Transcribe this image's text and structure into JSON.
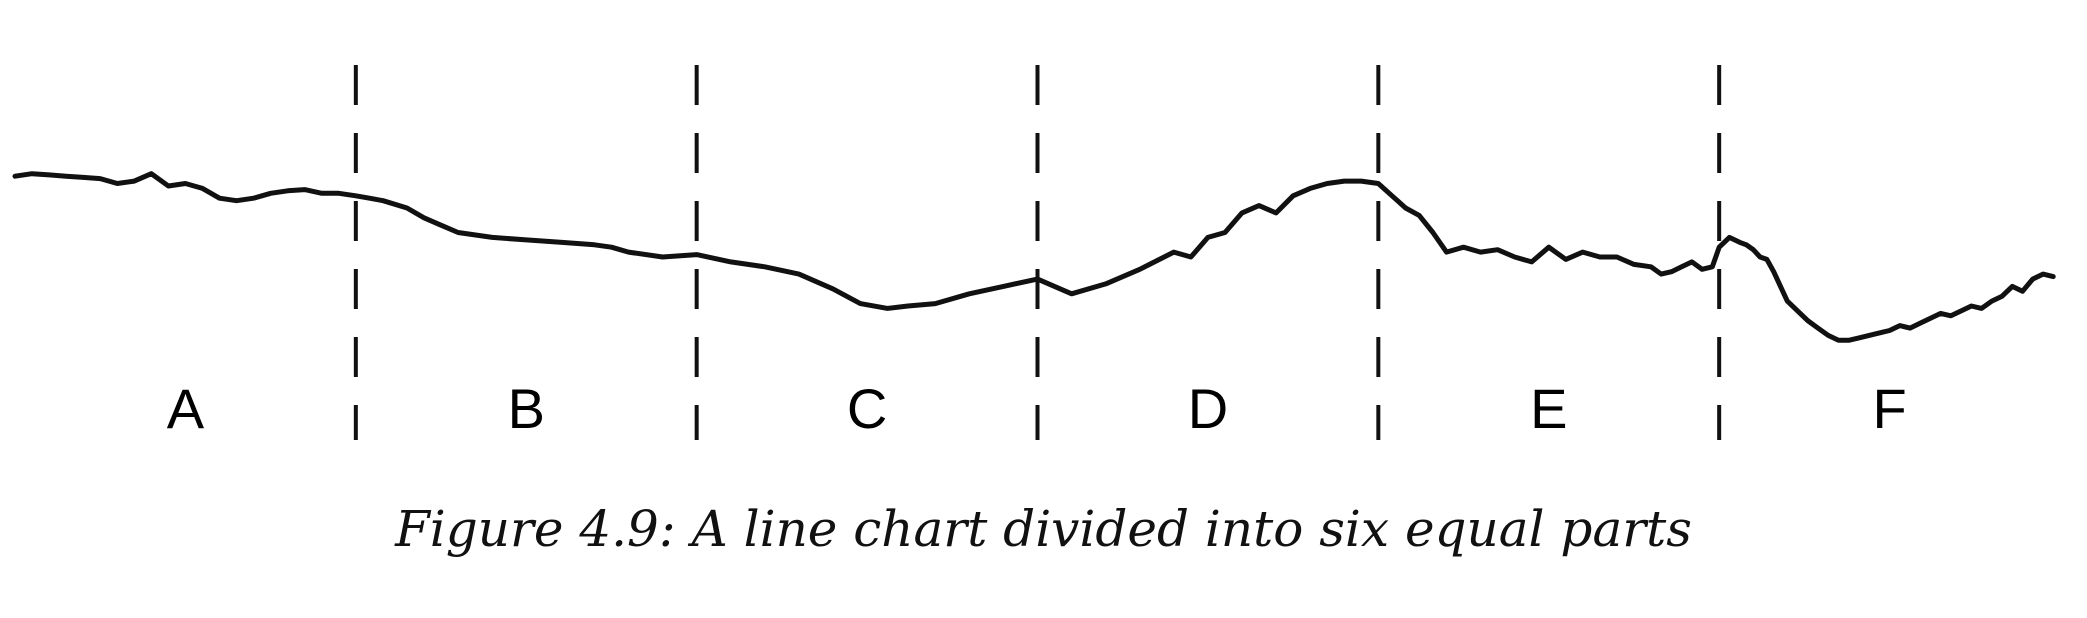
{
  "caption": "Figure 4.9: A line chart divided into six equal parts",
  "chart_data": {
    "type": "line",
    "title": "",
    "xlabel": "",
    "ylabel": "",
    "xlim": [
      0,
      600
    ],
    "ylim": [
      0,
      100
    ],
    "grid": false,
    "axes_visible": false,
    "line_color": "#111111",
    "segments": {
      "labels": [
        "A",
        "B",
        "C",
        "D",
        "E",
        "F"
      ],
      "boundaries": [
        100,
        200,
        300,
        400,
        500
      ]
    },
    "series": [
      {
        "x": [
          0,
          5,
          10,
          15,
          20,
          25,
          30,
          35,
          40,
          45,
          50,
          55,
          60,
          65,
          70,
          75,
          80,
          85,
          90,
          95,
          100,
          104,
          108,
          115,
          120,
          125,
          130,
          140,
          150,
          160,
          165,
          170,
          175,
          180,
          190,
          200,
          210,
          220,
          230,
          240,
          248,
          256,
          262,
          270,
          280,
          290,
          300,
          310,
          320,
          330,
          340,
          345,
          350,
          355,
          360,
          365,
          370,
          375,
          380,
          385,
          390,
          395,
          400,
          404,
          408,
          412,
          416,
          420,
          425,
          430,
          435,
          440,
          445,
          450,
          455,
          460,
          465,
          470,
          475,
          480,
          483,
          486,
          489,
          492,
          495,
          498,
          500,
          503,
          506,
          508,
          510,
          512,
          514,
          516,
          518,
          520,
          523,
          526,
          529,
          532,
          535,
          538,
          541,
          544,
          547,
          550,
          553,
          556,
          559,
          562,
          565,
          568,
          571,
          574,
          577,
          580,
          583,
          586,
          589,
          592,
          595,
          598
        ],
        "values": [
          73,
          74,
          73.5,
          73,
          72.5,
          72,
          70,
          71,
          74,
          69,
          70,
          68,
          64,
          63,
          64,
          66,
          67,
          67.5,
          66,
          66,
          65,
          64,
          63,
          60,
          56,
          53,
          50,
          48,
          47,
          46,
          45.5,
          45,
          44,
          42,
          40,
          41,
          38,
          36,
          33,
          27,
          21,
          19,
          20,
          21,
          25,
          28,
          31,
          25,
          29,
          35,
          42,
          40,
          48,
          50,
          58,
          61,
          58,
          65,
          68,
          70,
          71,
          71,
          70,
          65,
          60,
          57,
          50,
          42,
          44,
          42,
          43,
          40,
          38,
          44,
          39,
          42,
          40,
          40,
          37,
          36,
          33,
          34,
          36,
          38,
          35,
          36,
          44,
          48,
          46,
          45,
          43,
          40,
          39,
          34,
          28,
          22,
          18,
          14,
          11,
          8,
          6,
          6,
          7,
          8,
          9,
          10,
          12,
          11,
          13,
          15,
          17,
          16,
          18,
          20,
          19,
          22,
          24,
          28,
          26,
          31,
          33,
          32
        ]
      }
    ]
  }
}
